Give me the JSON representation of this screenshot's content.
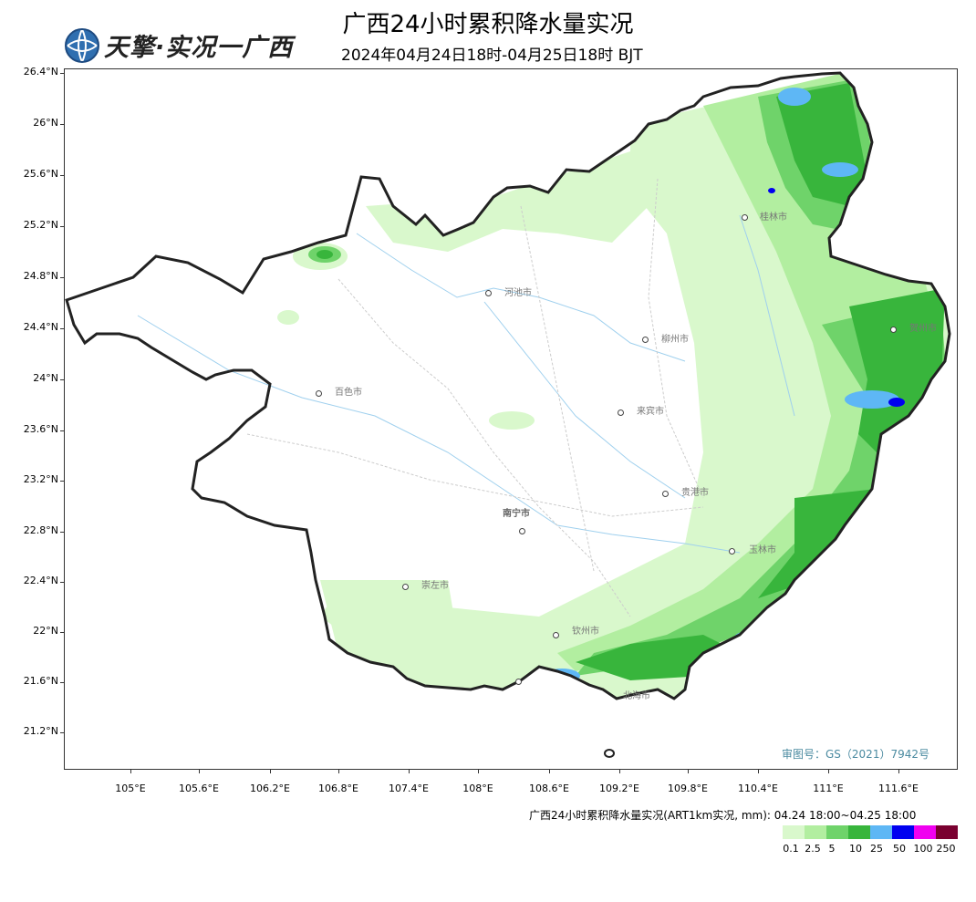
{
  "header": {
    "title": "广西24小时累积降水量实况",
    "subtitle": "2024年04月24日18时-04月25日18时 BJT",
    "logo_text": "天擎·实况一广西"
  },
  "axes": {
    "y_labels": [
      "26.4°N",
      "26°N",
      "25.6°N",
      "25.2°N",
      "24.8°N",
      "24.4°N",
      "24°N",
      "23.6°N",
      "23.2°N",
      "22.8°N",
      "22.4°N",
      "22°N",
      "21.6°N",
      "21.2°N"
    ],
    "x_labels": [
      "105°E",
      "105.6°E",
      "106.2°E",
      "106.8°E",
      "107.4°E",
      "108°E",
      "108.6°E",
      "109.2°E",
      "109.8°E",
      "110.4°E",
      "111°E",
      "111.6°E"
    ]
  },
  "cities": [
    {
      "name": "桂林市"
    },
    {
      "name": "河池市"
    },
    {
      "name": "柳州市"
    },
    {
      "name": "贺州市"
    },
    {
      "name": "百色市"
    },
    {
      "name": "来宾市"
    },
    {
      "name": "贵港市"
    },
    {
      "name": "南宁市"
    },
    {
      "name": "玉林市"
    },
    {
      "name": "崇左市"
    },
    {
      "name": "钦州市"
    },
    {
      "name": "北海市"
    }
  ],
  "approval": "审图号：GS（2021）7942号",
  "legend": {
    "title": "广西24小时累积降水量实况(ART1km实况, mm): 04.24 18:00~04.25 18:00",
    "colors": [
      "#d9f8cc",
      "#b2eea0",
      "#6fd36a",
      "#38b53c",
      "#5eb7f5",
      "#0000f0",
      "#f000f0",
      "#7a0030"
    ],
    "labels": [
      "0.1",
      "2.5",
      "5",
      "10",
      "25",
      "50",
      "100",
      "250"
    ]
  },
  "map": {
    "boundary_color": "#222222",
    "river_color": "#9fd0ee",
    "county_color": "#cccccc"
  }
}
